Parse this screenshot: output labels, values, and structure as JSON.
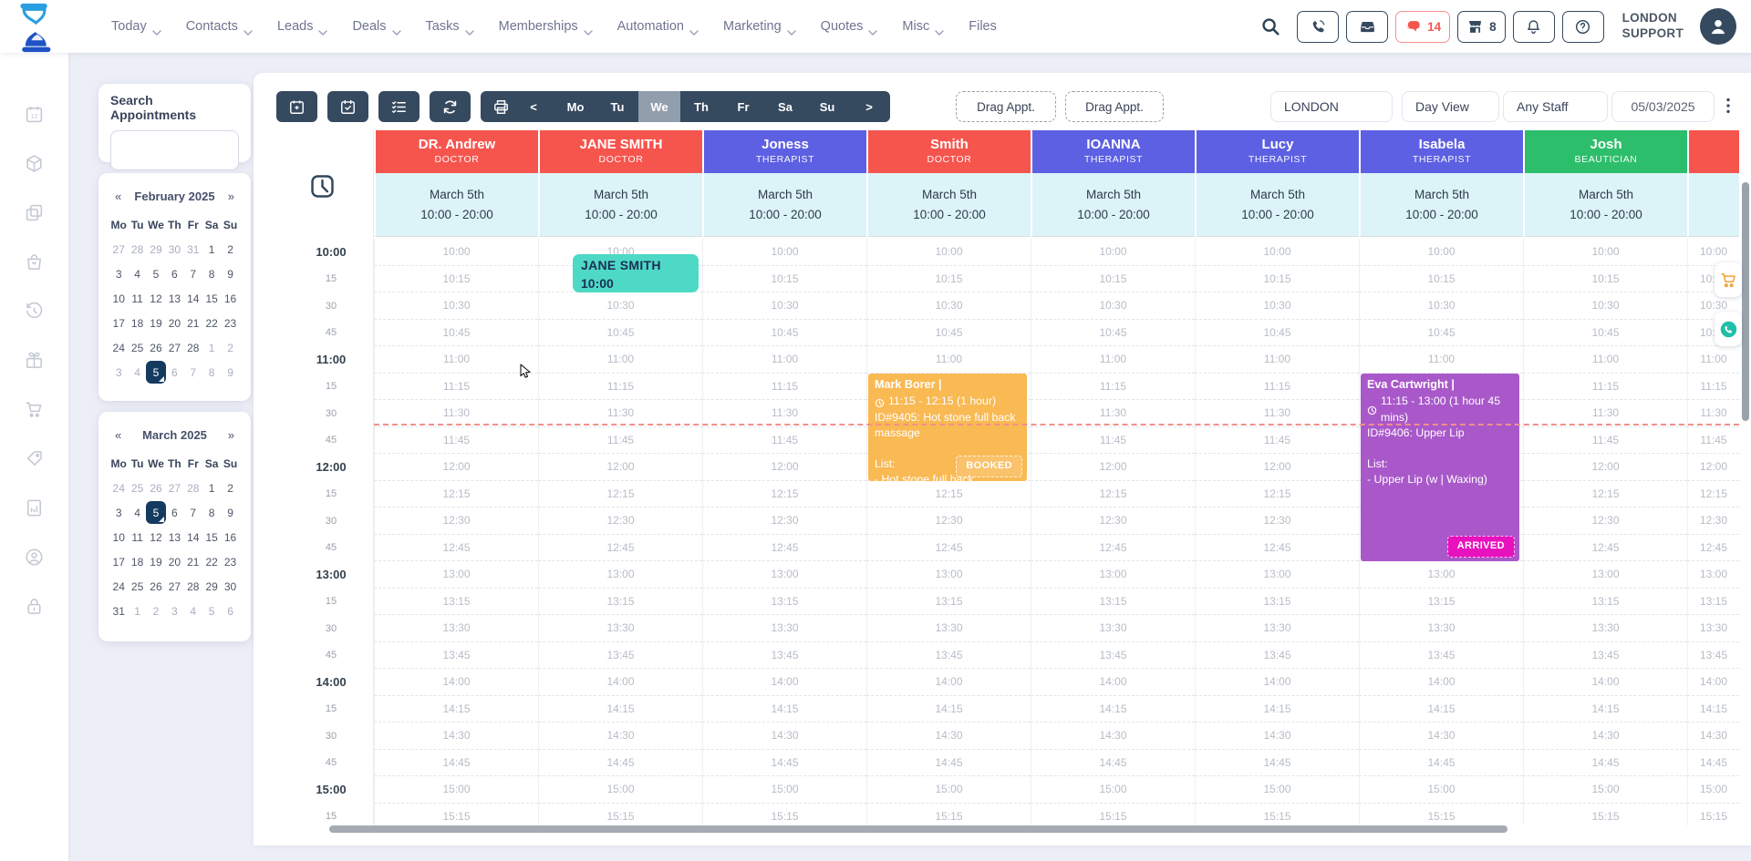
{
  "header": {
    "nav": [
      {
        "label": "Today",
        "dropdown": true
      },
      {
        "label": "Contacts",
        "dropdown": true
      },
      {
        "label": "Leads",
        "dropdown": true
      },
      {
        "label": "Deals",
        "dropdown": true
      },
      {
        "label": "Tasks",
        "dropdown": true
      },
      {
        "label": "Memberships",
        "dropdown": true
      },
      {
        "label": "Automation",
        "dropdown": true
      },
      {
        "label": "Marketing",
        "dropdown": true
      },
      {
        "label": "Quotes",
        "dropdown": true
      },
      {
        "label": "Misc",
        "dropdown": true
      },
      {
        "label": "Files",
        "dropdown": false
      }
    ],
    "actions": [
      {
        "icon": "phone-icon"
      },
      {
        "icon": "inbox-icon"
      },
      {
        "icon": "chat-icon",
        "count": "14",
        "accent": true
      },
      {
        "icon": "store-icon",
        "count": "8"
      },
      {
        "icon": "bell-icon"
      },
      {
        "icon": "help-icon"
      }
    ],
    "account_line1": "LONDON",
    "account_line2": "SUPPORT"
  },
  "sidebar": {
    "icons": [
      "calendar-12-icon",
      "package-icon",
      "copies-icon",
      "tote-icon",
      "history-icon",
      "gift-icon",
      "cart-icon",
      "tags-icon",
      "report-icon",
      "user-circle-icon",
      "lock-icon"
    ]
  },
  "search_panel": {
    "label": "Search Appointments",
    "value": ""
  },
  "calendars": [
    {
      "title": "February 2025",
      "prev": "«",
      "next": "»",
      "day_headers": [
        "Mo",
        "Tu",
        "We",
        "Th",
        "Fr",
        "Sa",
        "Su"
      ],
      "weeks": [
        [
          {
            "t": "27",
            "m": 1
          },
          {
            "t": "28",
            "m": 1
          },
          {
            "t": "29",
            "m": 1
          },
          {
            "t": "30",
            "m": 1
          },
          {
            "t": "31",
            "m": 1
          },
          {
            "t": "1"
          },
          {
            "t": "2"
          }
        ],
        [
          {
            "t": "3"
          },
          {
            "t": "4"
          },
          {
            "t": "5"
          },
          {
            "t": "6"
          },
          {
            "t": "7"
          },
          {
            "t": "8"
          },
          {
            "t": "9"
          }
        ],
        [
          {
            "t": "10"
          },
          {
            "t": "11"
          },
          {
            "t": "12"
          },
          {
            "t": "13"
          },
          {
            "t": "14"
          },
          {
            "t": "15"
          },
          {
            "t": "16"
          }
        ],
        [
          {
            "t": "17"
          },
          {
            "t": "18"
          },
          {
            "t": "19"
          },
          {
            "t": "20"
          },
          {
            "t": "21"
          },
          {
            "t": "22"
          },
          {
            "t": "23"
          }
        ],
        [
          {
            "t": "24"
          },
          {
            "t": "25"
          },
          {
            "t": "26"
          },
          {
            "t": "27"
          },
          {
            "t": "28"
          },
          {
            "t": "1",
            "m": 1
          },
          {
            "t": "2",
            "m": 1
          }
        ],
        [
          {
            "t": "3",
            "m": 1
          },
          {
            "t": "4",
            "m": 1
          },
          {
            "t": "5",
            "s": 1
          },
          {
            "t": "6",
            "m": 1
          },
          {
            "t": "7",
            "m": 1
          },
          {
            "t": "8",
            "m": 1
          },
          {
            "t": "9",
            "m": 1
          }
        ]
      ]
    },
    {
      "title": "March 2025",
      "prev": "«",
      "next": "»",
      "day_headers": [
        "Mo",
        "Tu",
        "We",
        "Th",
        "Fr",
        "Sa",
        "Su"
      ],
      "weeks": [
        [
          {
            "t": "24",
            "m": 1
          },
          {
            "t": "25",
            "m": 1
          },
          {
            "t": "26",
            "m": 1
          },
          {
            "t": "27",
            "m": 1
          },
          {
            "t": "28",
            "m": 1
          },
          {
            "t": "1"
          },
          {
            "t": "2"
          }
        ],
        [
          {
            "t": "3"
          },
          {
            "t": "4"
          },
          {
            "t": "5",
            "s": 1
          },
          {
            "t": "6"
          },
          {
            "t": "7"
          },
          {
            "t": "8"
          },
          {
            "t": "9"
          }
        ],
        [
          {
            "t": "10"
          },
          {
            "t": "11"
          },
          {
            "t": "12"
          },
          {
            "t": "13"
          },
          {
            "t": "14"
          },
          {
            "t": "15"
          },
          {
            "t": "16"
          }
        ],
        [
          {
            "t": "17"
          },
          {
            "t": "18"
          },
          {
            "t": "19"
          },
          {
            "t": "20"
          },
          {
            "t": "21"
          },
          {
            "t": "22"
          },
          {
            "t": "23"
          }
        ],
        [
          {
            "t": "24"
          },
          {
            "t": "25"
          },
          {
            "t": "26"
          },
          {
            "t": "27"
          },
          {
            "t": "28"
          },
          {
            "t": "29"
          },
          {
            "t": "30"
          }
        ],
        [
          {
            "t": "31"
          },
          {
            "t": "1",
            "m": 1
          },
          {
            "t": "2",
            "m": 1
          },
          {
            "t": "3",
            "m": 1
          },
          {
            "t": "4",
            "m": 1
          },
          {
            "t": "5",
            "m": 1
          },
          {
            "t": "6",
            "m": 1
          }
        ]
      ]
    }
  ],
  "toolbar": {
    "icon_buttons": [
      "calendar-add-icon",
      "calendar-check-icon",
      "checklist-icon",
      "refresh-icon",
      "print-icon"
    ],
    "day_tabs": [
      "<",
      "Mo",
      "Tu",
      "We",
      "Th",
      "Fr",
      "Sa",
      "Su",
      ">"
    ],
    "active_tab": "We",
    "drag_buttons": [
      "Drag Appt.",
      "Drag Appt."
    ],
    "filters": [
      {
        "value": "LONDON"
      },
      {
        "value": "Day View"
      },
      {
        "value": "Any Staff"
      }
    ],
    "date_value": "05/03/2025"
  },
  "schedule": {
    "date_label": "March 5th",
    "hours_label": "10:00 - 20:00",
    "staff": [
      {
        "name": "DR. Andrew",
        "role": "DOCTOR",
        "color": "#f6554e"
      },
      {
        "name": "JANE SMITH",
        "role": "DOCTOR",
        "color": "#f6554e"
      },
      {
        "name": "Joness",
        "role": "THERAPIST",
        "color": "#5d60e2"
      },
      {
        "name": "Smith",
        "role": "DOCTOR",
        "color": "#f6554e"
      },
      {
        "name": "IOANNA",
        "role": "THERAPIST",
        "color": "#5d60e2"
      },
      {
        "name": "Lucy",
        "role": "THERAPIST",
        "color": "#5d60e2"
      },
      {
        "name": "Isabela",
        "role": "THERAPIST",
        "color": "#5d60e2"
      },
      {
        "name": "Josh",
        "role": "BEAUTICIAN",
        "color": "#2dbe6c"
      },
      {
        "name": "",
        "role": "",
        "color": "#f6554e"
      }
    ],
    "time_slots": [
      "10:00",
      "10:15",
      "10:30",
      "10:45",
      "11:00",
      "11:15",
      "11:30",
      "11:45",
      "12:00",
      "12:15",
      "12:30",
      "12:45",
      "13:00",
      "13:15",
      "13:30",
      "13:45",
      "14:00",
      "14:15",
      "14:30",
      "14:45",
      "15:00",
      "15:15"
    ],
    "appointments": [
      {
        "kind": "mini",
        "staff_index": 1,
        "title": "JANE SMITH",
        "time": "10:00",
        "start": "10:00",
        "color": "#4ed9c6",
        "text_color": "#1c2f55"
      },
      {
        "kind": "card",
        "staff_index": 3,
        "client": "Mark Borer |",
        "time_range": "11:15 - 12:15 (1 hour)",
        "service": "ID#9405: Hot stone full back massage",
        "list_label": "List:",
        "list_items": [
          "- Hot stone full back"
        ],
        "status": "BOOKED",
        "status_bg": "rgba(255,255,255,0.14)",
        "color": "#f9b953",
        "start": "11:15",
        "end": "12:15"
      },
      {
        "kind": "card",
        "staff_index": 6,
        "client": "Eva Cartwright |",
        "time_range": "11:15 - 13:00 (1 hour 45 mins)",
        "service": "ID#9406: Upper Lip",
        "list_label": "List:",
        "list_items": [
          "- Upper Lip (w | Waxing)"
        ],
        "status": "ARRIVED",
        "status_bg": "#e712bd",
        "color": "#a958ca",
        "start": "11:15",
        "end": "13:00"
      }
    ]
  }
}
